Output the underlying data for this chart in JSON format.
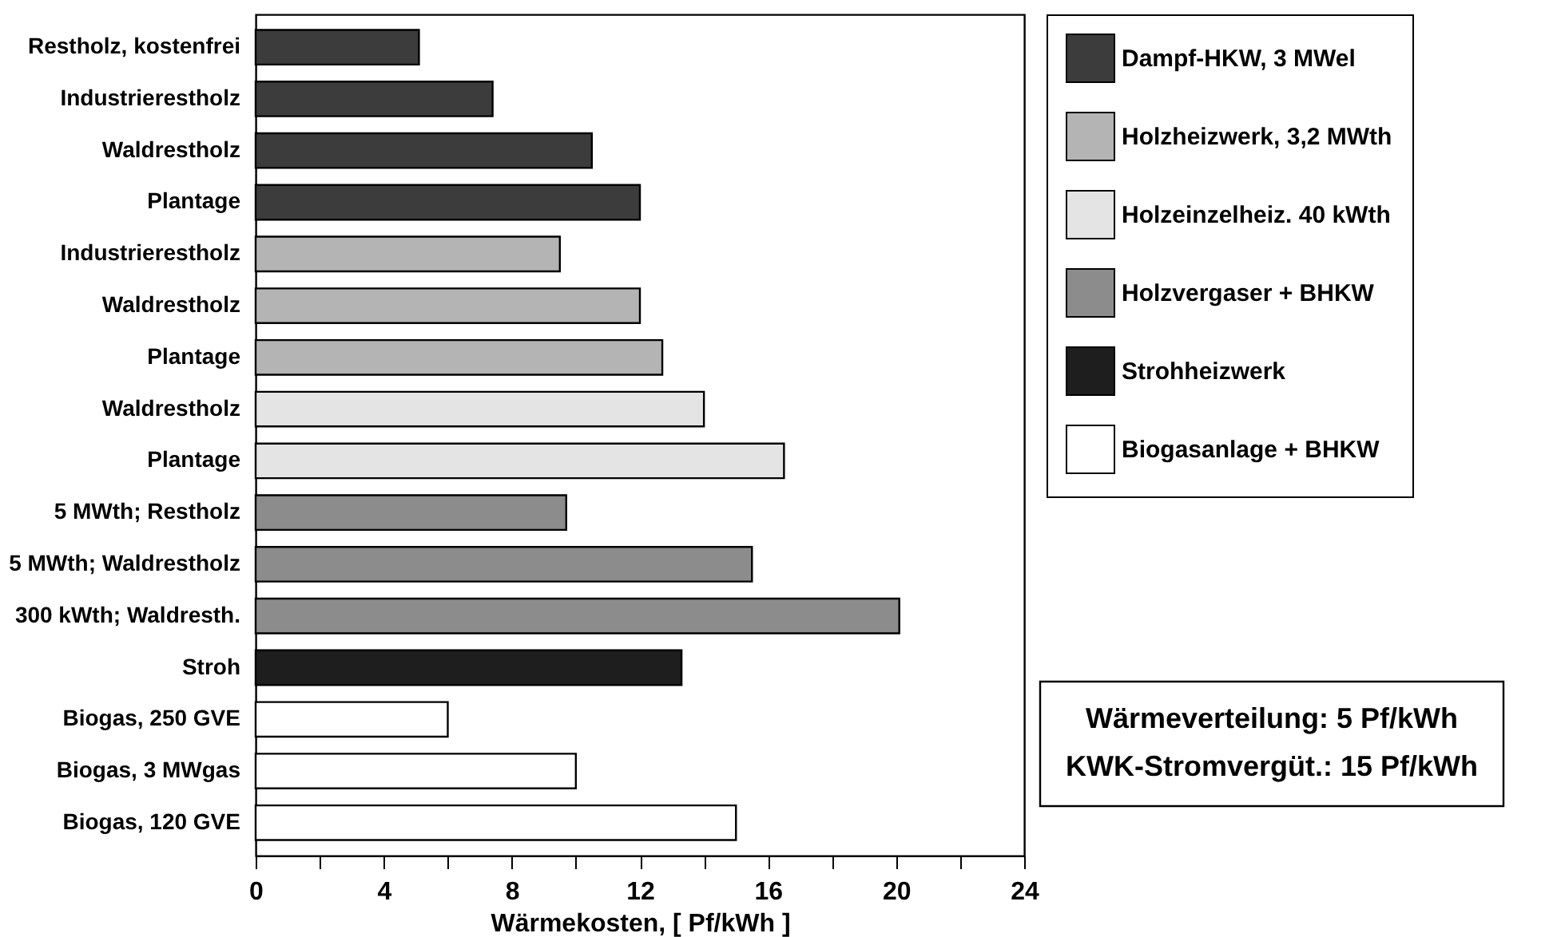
{
  "chart_data": {
    "type": "bar",
    "orientation": "horizontal",
    "xlabel": "Wärmekosten, [ Pf/kWh ]",
    "categories": [
      "Restholz, kostenfrei",
      "Industrierestholz",
      "Waldrestholz",
      "Plantage",
      "Industrierestholz",
      "Waldrestholz",
      "Plantage",
      "Waldrestholz",
      "Plantage",
      "5 MWth; Restholz",
      "5 MWth; Waldrestholz",
      "300 kWth; Waldresth.",
      "Stroh",
      "Biogas, 250 GVE",
      "Biogas, 3 MWgas",
      "Biogas, 120 GVE"
    ],
    "series": [
      {
        "name": "Dampf-HKW, 3 MWel",
        "color": "#3c3c3c",
        "values": [
          5.1,
          7.4,
          10.5,
          12.0,
          null,
          null,
          null,
          null,
          null,
          null,
          null,
          null,
          null,
          null,
          null,
          null
        ]
      },
      {
        "name": "Holzheizwerk, 3,2 MWth",
        "color": "#b4b4b4",
        "values": [
          null,
          null,
          null,
          null,
          9.5,
          12.0,
          12.7,
          null,
          null,
          null,
          null,
          null,
          null,
          null,
          null,
          null
        ]
      },
      {
        "name": "Holzeinzelheiz. 40 kWth",
        "color": "#e4e4e4",
        "values": [
          null,
          null,
          null,
          null,
          null,
          null,
          null,
          14.0,
          16.5,
          null,
          null,
          null,
          null,
          null,
          null,
          null
        ]
      },
      {
        "name": "Holzvergaser + BHKW",
        "color": "#8c8c8c",
        "values": [
          null,
          null,
          null,
          null,
          null,
          null,
          null,
          null,
          null,
          9.7,
          15.5,
          20.1,
          null,
          null,
          null,
          null
        ]
      },
      {
        "name": "Strohheizwerk",
        "color": "#1e1e1e",
        "values": [
          null,
          null,
          null,
          null,
          null,
          null,
          null,
          null,
          null,
          null,
          null,
          null,
          13.3,
          null,
          null,
          null
        ]
      },
      {
        "name": "Biogasanlage + BHKW",
        "color": "#ffffff",
        "values": [
          null,
          null,
          null,
          null,
          null,
          null,
          null,
          null,
          null,
          null,
          null,
          null,
          null,
          6.0,
          10.0,
          15.0
        ]
      }
    ],
    "xlim": [
      0,
      24
    ],
    "xticks": [
      0,
      {
        "value": 2,
        "label": null
      },
      4,
      {
        "value": 6,
        "label": null
      },
      8,
      {
        "value": 10,
        "label": null
      },
      12,
      {
        "value": 14,
        "label": null
      },
      16,
      {
        "value": 18,
        "label": null
      },
      20,
      {
        "value": 22,
        "label": null
      },
      24
    ],
    "grid": false,
    "legend": "right",
    "annotations": [
      "Wärmeverteilung: 5 Pf/kWh",
      "KWK-Stromvergüt.: 15 Pf/kWh"
    ]
  }
}
